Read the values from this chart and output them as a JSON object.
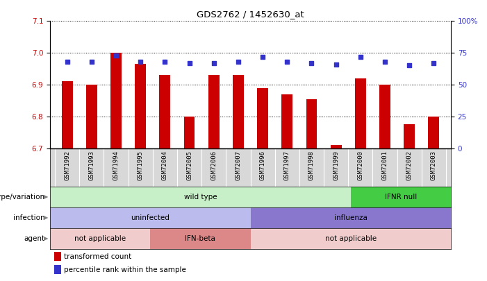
{
  "title": "GDS2762 / 1452630_at",
  "samples": [
    "GSM71992",
    "GSM71993",
    "GSM71994",
    "GSM71995",
    "GSM72004",
    "GSM72005",
    "GSM72006",
    "GSM72007",
    "GSM71996",
    "GSM71997",
    "GSM71998",
    "GSM71999",
    "GSM72000",
    "GSM72001",
    "GSM72002",
    "GSM72003"
  ],
  "transformed_counts": [
    6.91,
    6.9,
    7.0,
    6.965,
    6.93,
    6.8,
    6.93,
    6.93,
    6.89,
    6.87,
    6.855,
    6.71,
    6.92,
    6.9,
    6.775,
    6.8
  ],
  "percentile_ranks": [
    68,
    68,
    73,
    68,
    68,
    67,
    67,
    68,
    72,
    68,
    67,
    66,
    72,
    68,
    65,
    67
  ],
  "ylim_left": [
    6.7,
    7.1
  ],
  "ylim_right": [
    0,
    100
  ],
  "yticks_left": [
    6.7,
    6.8,
    6.9,
    7.0,
    7.1
  ],
  "yticks_right": [
    0,
    25,
    50,
    75,
    100
  ],
  "bar_color": "#cc0000",
  "dot_color": "#3333cc",
  "bar_bottom": 6.7,
  "annotation_rows": [
    {
      "label": "genotype/variation",
      "segments": [
        {
          "text": "wild type",
          "start": 0,
          "end": 12,
          "color": "#c8f0c8"
        },
        {
          "text": "IFNR null",
          "start": 12,
          "end": 16,
          "color": "#44cc44"
        }
      ]
    },
    {
      "label": "infection",
      "segments": [
        {
          "text": "uninfected",
          "start": 0,
          "end": 8,
          "color": "#bbbbee"
        },
        {
          "text": "influenza",
          "start": 8,
          "end": 16,
          "color": "#8877cc"
        }
      ]
    },
    {
      "label": "agent",
      "segments": [
        {
          "text": "not applicable",
          "start": 0,
          "end": 4,
          "color": "#f0cccc"
        },
        {
          "text": "IFN-beta",
          "start": 4,
          "end": 8,
          "color": "#dd8888"
        },
        {
          "text": "not applicable",
          "start": 8,
          "end": 16,
          "color": "#f0cccc"
        }
      ]
    }
  ],
  "legend_items": [
    {
      "color": "#cc0000",
      "label": "transformed count"
    },
    {
      "color": "#3333cc",
      "label": "percentile rank within the sample"
    }
  ],
  "bar_width": 0.45,
  "tick_label_bg": "#d8d8d8"
}
